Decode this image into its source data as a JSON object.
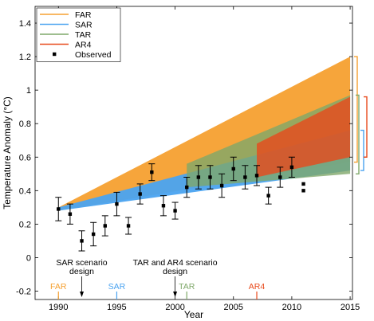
{
  "chart_data": {
    "type": "area",
    "ylabel": "Temperature Anomaly (°C)",
    "xlabel": "Year",
    "xlim": [
      1988,
      2015.2
    ],
    "ylim": [
      -0.25,
      1.5
    ],
    "x_ticks": [
      1990,
      1995,
      2000,
      2005,
      2010,
      2015
    ],
    "y_ticks": [
      -0.2,
      0,
      0.2,
      0.4,
      0.6,
      0.8,
      1,
      1.2,
      1.4
    ],
    "y_tick_labels": [
      "-0.2",
      "0",
      "0.2",
      "0.4",
      "0.6",
      "0.8",
      "1",
      "1.2",
      "1.4"
    ],
    "legend_placement": "top-left",
    "legend": [
      {
        "label": "FAR",
        "color": "#F5A030"
      },
      {
        "label": "SAR",
        "color": "#4AA3F0"
      },
      {
        "label": "TAR",
        "color": "#7FA86A"
      },
      {
        "label": "AR4",
        "color": "#E84A1C"
      },
      {
        "label": "Observed",
        "marker": "square",
        "color": "#000000"
      }
    ],
    "series": [
      {
        "name": "FAR",
        "color": "#F5A030",
        "x": [
          1990,
          2015
        ],
        "lower": [
          0.28,
          0.57
        ],
        "upper": [
          0.3,
          1.2
        ]
      },
      {
        "name": "SAR",
        "color": "#4AA3F0",
        "x": [
          1990,
          2015
        ],
        "lower": [
          0.28,
          0.52
        ],
        "upper": [
          0.3,
          0.76
        ]
      },
      {
        "name": "TAR",
        "color": "#7FA86A",
        "x": [
          2001,
          2015
        ],
        "lower": [
          0.42,
          0.5
        ],
        "upper": [
          0.56,
          0.97
        ]
      },
      {
        "name": "AR4",
        "color": "#E84A1C",
        "x": [
          2007,
          2015
        ],
        "lower": [
          0.48,
          0.6
        ],
        "upper": [
          0.68,
          0.96
        ]
      }
    ],
    "observed": [
      {
        "x": 1990,
        "y": 0.29,
        "err": 0.07
      },
      {
        "x": 1991,
        "y": 0.26,
        "err": 0.06
      },
      {
        "x": 1992,
        "y": 0.1,
        "err": 0.06
      },
      {
        "x": 1993,
        "y": 0.14,
        "err": 0.07
      },
      {
        "x": 1994,
        "y": 0.19,
        "err": 0.06
      },
      {
        "x": 1995,
        "y": 0.32,
        "err": 0.07
      },
      {
        "x": 1996,
        "y": 0.19,
        "err": 0.05
      },
      {
        "x": 1997,
        "y": 0.38,
        "err": 0.06
      },
      {
        "x": 1998,
        "y": 0.51,
        "err": 0.05
      },
      {
        "x": 1999,
        "y": 0.31,
        "err": 0.06
      },
      {
        "x": 2000,
        "y": 0.28,
        "err": 0.05
      },
      {
        "x": 2001,
        "y": 0.42,
        "err": 0.06
      },
      {
        "x": 2002,
        "y": 0.48,
        "err": 0.07
      },
      {
        "x": 2003,
        "y": 0.48,
        "err": 0.07
      },
      {
        "x": 2004,
        "y": 0.43,
        "err": 0.07
      },
      {
        "x": 2005,
        "y": 0.53,
        "err": 0.07
      },
      {
        "x": 2006,
        "y": 0.48,
        "err": 0.07
      },
      {
        "x": 2007,
        "y": 0.49,
        "err": 0.06
      },
      {
        "x": 2008,
        "y": 0.37,
        "err": 0.05
      },
      {
        "x": 2009,
        "y": 0.48,
        "err": 0.06
      },
      {
        "x": 2010,
        "y": 0.54,
        "err": 0.06
      },
      {
        "x": 2011,
        "y": 0.4,
        "err": 0
      },
      {
        "x": 2011,
        "y": 0.44,
        "err": 0
      }
    ],
    "right_brackets": [
      {
        "name": "FAR",
        "color": "#F5A030",
        "range": [
          0.57,
          1.2
        ]
      },
      {
        "name": "SAR",
        "color": "#4AA3F0",
        "range": [
          0.52,
          0.76
        ]
      },
      {
        "name": "TAR",
        "color": "#7FA86A",
        "range": [
          0.5,
          0.97
        ]
      },
      {
        "name": "AR4",
        "color": "#E84A1C",
        "range": [
          0.6,
          0.96
        ]
      }
    ],
    "annotations": [
      {
        "text_lines": [
          "SAR scenario",
          "design"
        ],
        "x": 1992
      },
      {
        "text_lines": [
          "TAR and AR4 scenario",
          "design"
        ],
        "x": 2000
      }
    ],
    "report_markers": [
      {
        "label": "FAR",
        "x": 1990,
        "color": "#F5A030"
      },
      {
        "label": "SAR",
        "x": 1995,
        "color": "#4AA3F0"
      },
      {
        "label": "TAR",
        "x": 2001,
        "color": "#7FA86A"
      },
      {
        "label": "AR4",
        "x": 2007,
        "color": "#E84A1C"
      }
    ]
  }
}
